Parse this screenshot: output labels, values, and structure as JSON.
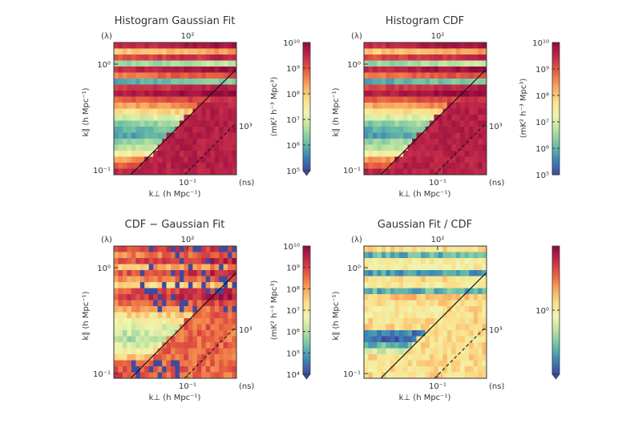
{
  "colors": {
    "colormap": [
      "#3f4a9e",
      "#3b86b8",
      "#6cc0a4",
      "#b8e0a0",
      "#eef6b0",
      "#fbe08c",
      "#f9a55c",
      "#e8603f",
      "#c42a4a",
      "#8e0a3c"
    ],
    "masked": "#3f4a9e",
    "axis": "#333333",
    "line": "#111111"
  },
  "chart_data": [
    {
      "type": "heatmap",
      "title": "Histogram Gaussian Fit",
      "xlabel": "k⊥ (h Mpc⁻¹)",
      "ylabel": "k∥ (h Mpc⁻¹)",
      "top_axis_label": "(λ)",
      "top_tick": "10²",
      "right_axis_label": "(ns)",
      "right_tick": "10³",
      "x_tick": "10⁻¹",
      "y_ticks": [
        "10⁰",
        "10⁻¹"
      ],
      "xlim": [
        0.035,
        0.32
      ],
      "ylim": [
        0.085,
        1.6
      ],
      "colorbar_label": "(mK² h⁻³ Mpc³)",
      "colorbar_scale": "log",
      "colorbar_ticks": [
        "10⁵",
        "10⁶",
        "10⁷",
        "10⁸",
        "10⁹",
        "10¹⁰"
      ],
      "colorbar_range": [
        5,
        10
      ],
      "colorbar_extend": "min",
      "row_levels": [
        9.6,
        8.2,
        9.3,
        6.6,
        9.7,
        8.9,
        6.1,
        9.4,
        9.8,
        9.1,
        8.5,
        7.9,
        7.1,
        6.5,
        6.2,
        6.0,
        6.6,
        6.9,
        7.6,
        8.6,
        9.2,
        9.7
      ],
      "gradient": 0.5,
      "bottom_right_level": 9.6,
      "noise": 0.4,
      "masked_fraction": 0,
      "wedge_line": "solid diagonal (horizon)",
      "buffer_line": "dashed diagonal"
    },
    {
      "type": "heatmap",
      "title": "Histogram CDF",
      "xlabel": "k⊥ (h Mpc⁻¹)",
      "ylabel": "k∥ (h Mpc⁻¹)",
      "top_axis_label": "(λ)",
      "top_tick": "10²",
      "right_axis_label": "(ns)",
      "right_tick": "10³",
      "x_tick": "10⁻¹",
      "y_ticks": [
        "10⁰",
        "10⁻¹"
      ],
      "xlim": [
        0.035,
        0.32
      ],
      "ylim": [
        0.085,
        1.6
      ],
      "colorbar_label": "(mK² h⁻³ Mpc³)",
      "colorbar_scale": "log",
      "colorbar_ticks": [
        "10⁵",
        "10⁶",
        "10⁷",
        "10⁸",
        "10⁹",
        "10¹⁰"
      ],
      "colorbar_range": [
        5,
        10
      ],
      "colorbar_extend": "none",
      "row_levels": [
        9.6,
        8.2,
        9.3,
        6.6,
        9.7,
        8.9,
        6.1,
        9.4,
        9.8,
        9.1,
        8.5,
        7.9,
        7.1,
        6.5,
        6.2,
        6.0,
        6.6,
        6.9,
        7.6,
        8.6,
        9.2,
        9.7
      ],
      "gradient": 0.5,
      "bottom_right_level": 9.6,
      "noise": 0.4,
      "masked_fraction": 0,
      "wedge_line": "solid diagonal (horizon)",
      "buffer_line": "dashed diagonal"
    },
    {
      "type": "heatmap",
      "title": "CDF − Gaussian Fit",
      "xlabel": "k⊥ (h Mpc⁻¹)",
      "ylabel": "k∥ (h Mpc⁻¹)",
      "top_axis_label": "(λ)",
      "top_tick": "10²",
      "right_axis_label": "(ns)",
      "right_tick": "10³",
      "x_tick": "10⁻¹",
      "y_ticks": [
        "10⁰",
        "10⁻¹"
      ],
      "xlim": [
        0.035,
        0.32
      ],
      "ylim": [
        0.085,
        1.6
      ],
      "colorbar_label": "(mK² h⁻³ Mpc³)",
      "colorbar_scale": "log",
      "colorbar_ticks": [
        "10⁴",
        "10⁵",
        "10⁶",
        "10⁷",
        "10⁸",
        "10⁹",
        "10¹⁰"
      ],
      "colorbar_range": [
        4,
        10
      ],
      "colorbar_extend": "min",
      "row_levels": [
        9.0,
        8.6,
        9.2,
        8.0,
        9.1,
        8.5,
        7.6,
        9.0,
        9.3,
        8.7,
        8.2,
        7.6,
        7.0,
        6.6,
        6.4,
        6.2,
        6.7,
        7.2,
        7.9,
        8.6,
        9.0,
        9.3
      ],
      "gradient": 0.7,
      "bottom_right_level": 8.6,
      "noise": 0.9,
      "masked_fraction": 0.16,
      "wedge_line": "solid diagonal (horizon)",
      "buffer_line": "dashed diagonal"
    },
    {
      "type": "heatmap",
      "title": "Gaussian Fit / CDF",
      "xlabel": "k⊥ (h Mpc⁻¹)",
      "ylabel": "k∥ (h Mpc⁻¹)",
      "top_axis_label": "(λ)",
      "top_tick": "10²",
      "right_axis_label": "(ns)",
      "right_tick": "10³",
      "x_tick": "10⁻¹",
      "y_ticks": [
        "10⁰",
        "10⁻¹"
      ],
      "xlim": [
        0.035,
        0.32
      ],
      "ylim": [
        0.085,
        1.6
      ],
      "colorbar_label": "",
      "colorbar_scale": "log",
      "colorbar_ticks": [
        "10⁰"
      ],
      "colorbar_range": [
        -1,
        1
      ],
      "colorbar_extend": "min",
      "row_levels": [
        0.1,
        -0.6,
        0.0,
        0.0,
        -0.7,
        0.1,
        0.0,
        -0.6,
        0.2,
        0.1,
        0.0,
        0.0,
        0.1,
        0.1,
        -0.8,
        -0.9,
        -0.6,
        -0.2,
        0.1,
        0.1,
        0.0,
        0.1
      ],
      "gradient": 0,
      "bottom_right_level": 0.1,
      "noise": 0.3,
      "masked_fraction": 0,
      "wedge_line": "solid diagonal (horizon)",
      "buffer_line": "dashed diagonal"
    }
  ]
}
